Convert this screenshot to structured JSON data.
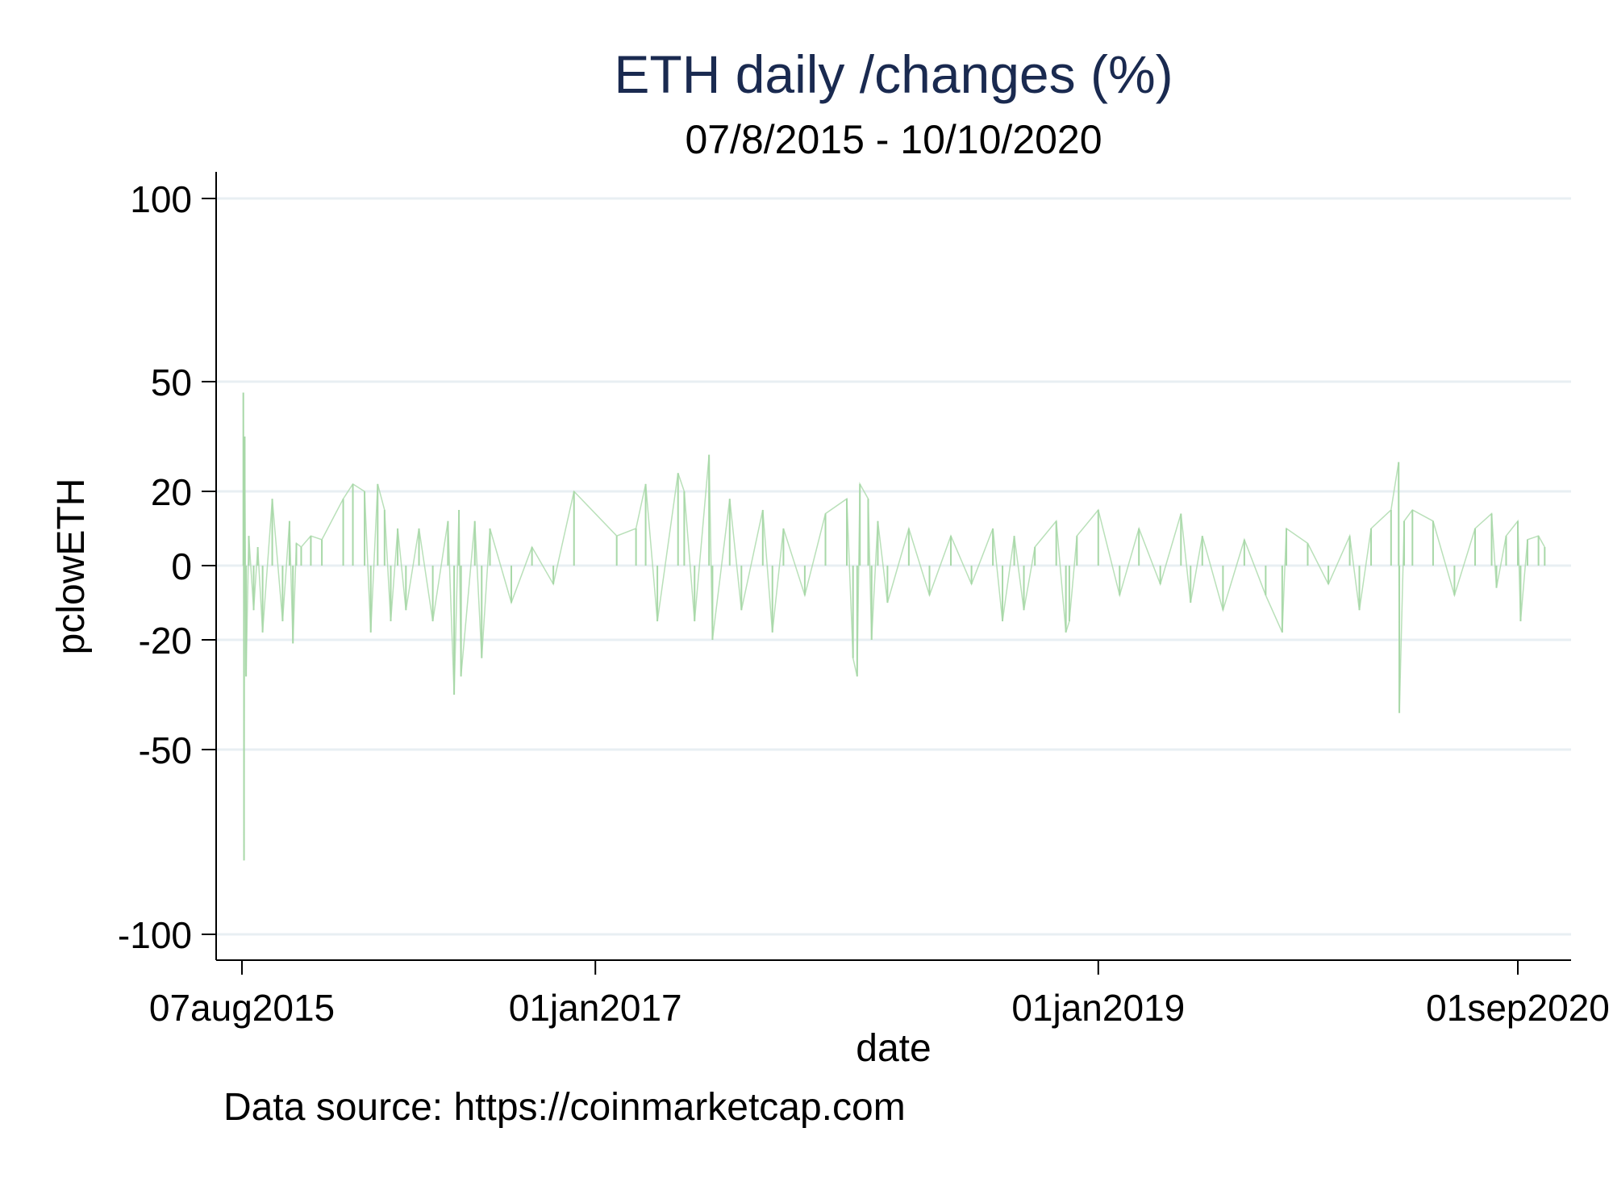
{
  "chart_data": {
    "type": "line",
    "title": "ETH daily /changes (%)",
    "subtitle": "07/8/2015 - 10/10/2020",
    "xlabel": "date",
    "ylabel": "pclowETH",
    "note": "Data source: https://coinmarketcap.com",
    "y_scale": "signed-nonlinear",
    "yticks": [
      100,
      50,
      20,
      0,
      -20,
      -50,
      -100
    ],
    "ytick_labels": [
      "100",
      "50",
      "20",
      "0",
      "-20",
      "-50",
      "-100"
    ],
    "xticks": [
      "2015-08-07",
      "2017-01-01",
      "2019-01-01",
      "2020-09-01"
    ],
    "xtick_labels": [
      "07aug2015",
      "01jan2017",
      "01jan2019",
      "01sep2020"
    ],
    "xlim": [
      "2015-08-01",
      "2020-10-26"
    ],
    "ylim": [
      -100,
      100
    ],
    "grid": true,
    "series_color": "#a8d8a8",
    "series": [
      {
        "x": [
          "2015-08-09",
          "2015-08-10",
          "2015-08-11",
          "2015-08-13",
          "2015-08-17",
          "2015-08-24",
          "2015-08-30",
          "2015-09-06",
          "2015-09-20",
          "2015-10-05",
          "2015-10-15",
          "2015-10-20",
          "2015-10-25",
          "2015-11-01",
          "2015-11-15",
          "2015-12-01",
          "2016-01-01",
          "2016-01-15",
          "2016-02-01",
          "2016-02-10",
          "2016-02-20",
          "2016-03-01",
          "2016-03-10",
          "2016-03-20",
          "2016-04-01",
          "2016-04-20",
          "2016-05-10",
          "2016-06-01",
          "2016-06-10",
          "2016-06-17",
          "2016-06-20",
          "2016-07-10",
          "2016-07-20",
          "2016-08-01",
          "2016-09-01",
          "2016-10-01",
          "2016-11-01",
          "2016-12-01",
          "2017-02-01",
          "2017-03-01",
          "2017-03-15",
          "2017-04-01",
          "2017-05-01",
          "2017-05-10",
          "2017-05-25",
          "2017-06-15",
          "2017-06-20",
          "2017-07-15",
          "2017-08-01",
          "2017-09-01",
          "2017-09-15",
          "2017-10-01",
          "2017-11-01",
          "2017-12-01",
          "2018-01-01",
          "2018-01-10",
          "2018-01-16",
          "2018-01-20",
          "2018-02-01",
          "2018-02-06",
          "2018-02-15",
          "2018-03-01",
          "2018-04-01",
          "2018-05-01",
          "2018-06-01",
          "2018-07-01",
          "2018-08-01",
          "2018-08-15",
          "2018-09-01",
          "2018-09-15",
          "2018-10-01",
          "2018-11-01",
          "2018-11-15",
          "2018-11-20",
          "2018-12-01",
          "2019-01-01",
          "2019-02-01",
          "2019-03-01",
          "2019-04-01",
          "2019-05-01",
          "2019-05-15",
          "2019-06-01",
          "2019-07-01",
          "2019-08-01",
          "2019-09-01",
          "2019-09-25",
          "2019-10-01",
          "2019-11-01",
          "2019-12-01",
          "2020-01-01",
          "2020-01-15",
          "2020-02-01",
          "2020-03-01",
          "2020-03-12",
          "2020-03-13",
          "2020-03-20",
          "2020-04-01",
          "2020-05-01",
          "2020-06-01",
          "2020-07-01",
          "2020-07-25",
          "2020-08-01",
          "2020-08-15",
          "2020-09-01",
          "2020-09-05",
          "2020-09-15",
          "2020-10-01",
          "2020-10-10"
        ],
        "y": [
          47,
          -80,
          35,
          -30,
          8,
          -12,
          5,
          -18,
          18,
          -15,
          12,
          -21,
          6,
          5,
          8,
          7,
          18,
          22,
          20,
          -18,
          22,
          15,
          -15,
          10,
          -12,
          10,
          -15,
          12,
          -35,
          15,
          -30,
          12,
          -25,
          10,
          -10,
          5,
          -5,
          20,
          8,
          10,
          22,
          -15,
          25,
          20,
          -15,
          30,
          -20,
          18,
          -12,
          15,
          -18,
          10,
          -8,
          14,
          18,
          -25,
          -30,
          22,
          18,
          -20,
          12,
          -10,
          10,
          -8,
          8,
          -5,
          10,
          -15,
          8,
          -12,
          5,
          12,
          -18,
          -15,
          8,
          15,
          -8,
          10,
          -5,
          14,
          -10,
          8,
          -12,
          7,
          -8,
          -18,
          10,
          6,
          -5,
          8,
          -12,
          10,
          15,
          28,
          -40,
          12,
          15,
          12,
          -8,
          10,
          14,
          -6,
          8,
          12,
          -15,
          7,
          8,
          5
        ]
      }
    ]
  }
}
